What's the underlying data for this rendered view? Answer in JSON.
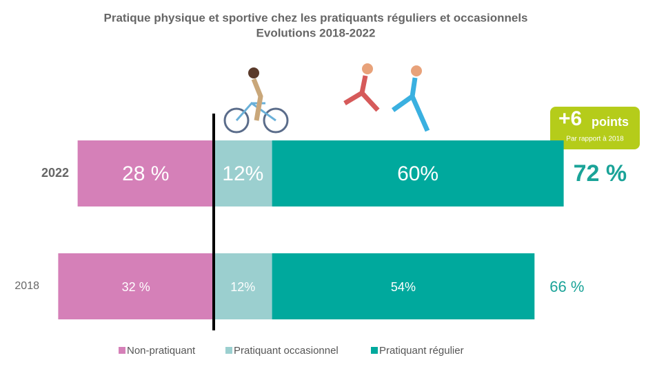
{
  "chart_data": {
    "type": "diverging_bar",
    "title": "Pratique physique et sportive chez les pratiquants réguliers et occasionnels",
    "subtitle": "Evolutions 2018-2022",
    "categories": [
      "2022",
      "2018"
    ],
    "series": [
      {
        "name": "Non-pratiquant",
        "color": "#d580b8",
        "values": [
          28,
          32
        ],
        "value_labels": [
          "28 %",
          "32 %"
        ],
        "side": "left"
      },
      {
        "name": "Pratiquant occasionnel",
        "color": "#9bcfcf",
        "values": [
          12,
          12
        ],
        "value_labels": [
          "12%",
          "12%"
        ],
        "side": "right"
      },
      {
        "name": "Pratiquant régulier",
        "color": "#00a99d",
        "values": [
          60,
          54
        ],
        "value_labels": [
          "60%",
          "54%"
        ],
        "side": "right"
      }
    ],
    "totals": {
      "values": [
        72,
        66
      ],
      "value_labels": [
        "72 %",
        "66 %"
      ],
      "color": "#1aa398"
    },
    "annotation": {
      "text": "+6",
      "unit": "points",
      "note": "Par rapport à 2018",
      "color": "#b5cc1a"
    },
    "legend": "bottom"
  }
}
